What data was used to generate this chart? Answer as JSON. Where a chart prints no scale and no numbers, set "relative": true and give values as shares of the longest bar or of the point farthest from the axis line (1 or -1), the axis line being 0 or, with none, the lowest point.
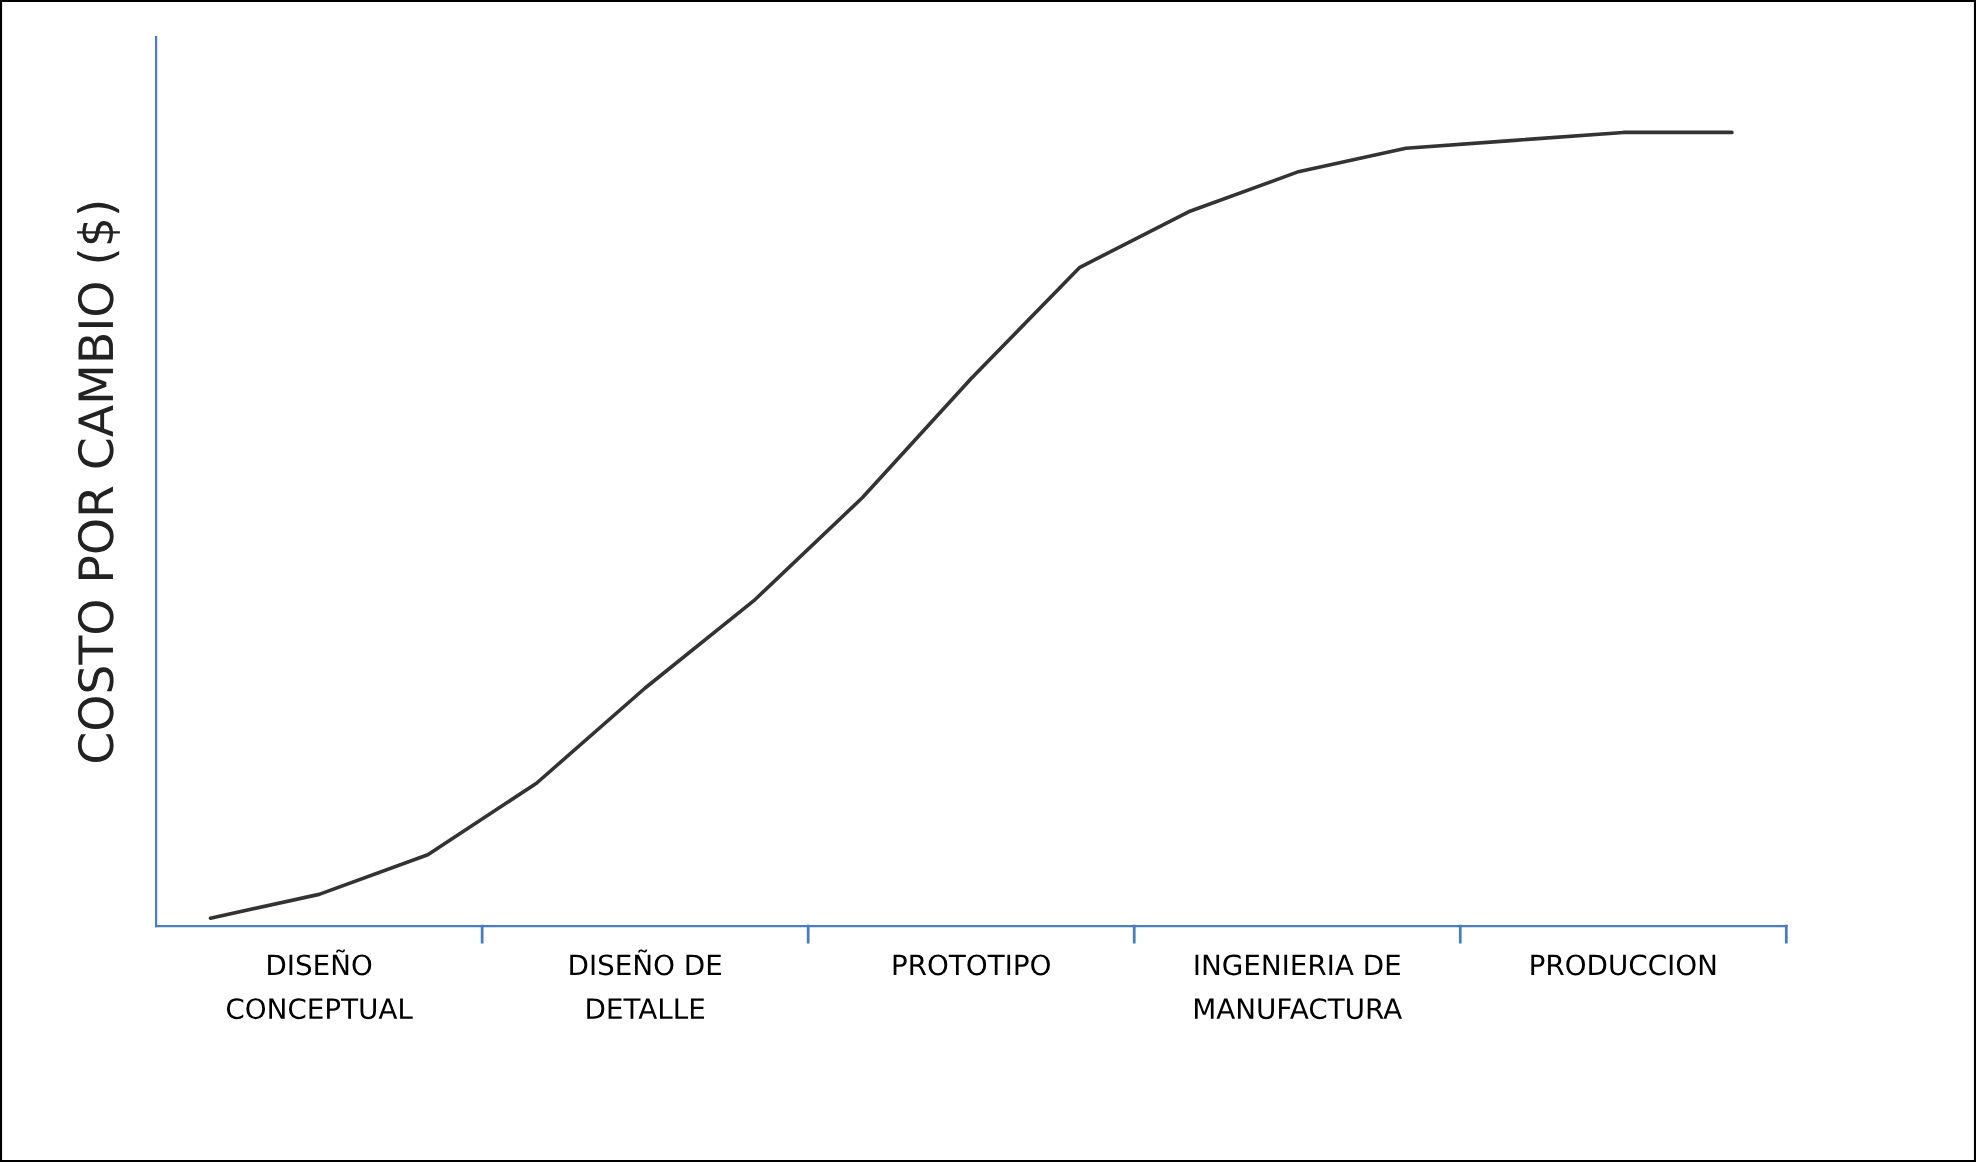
{
  "chart_data": {
    "type": "line",
    "relative": true,
    "ylabel": "COSTO POR CAMBIO ($)",
    "categories": [
      null,
      "DISEÑO\nCONCEPTUAL",
      null,
      null,
      "DISEÑO DE\nDETALLE",
      null,
      null,
      "PROTOTIPO",
      null,
      null,
      "INGENIERIA DE\nMANUFACTURA",
      null,
      null,
      "PRODUCCION",
      null
    ],
    "series": [
      {
        "color": "#333333",
        "values": [
          0.01,
          0.04,
          0.09,
          0.18,
          0.3,
          0.41,
          0.54,
          0.69,
          0.83,
          0.9,
          0.95,
          0.98,
          0.99,
          1.0,
          1.0
        ]
      }
    ],
    "grid": false,
    "legend": false,
    "marker": "none",
    "line_style": "solid"
  }
}
